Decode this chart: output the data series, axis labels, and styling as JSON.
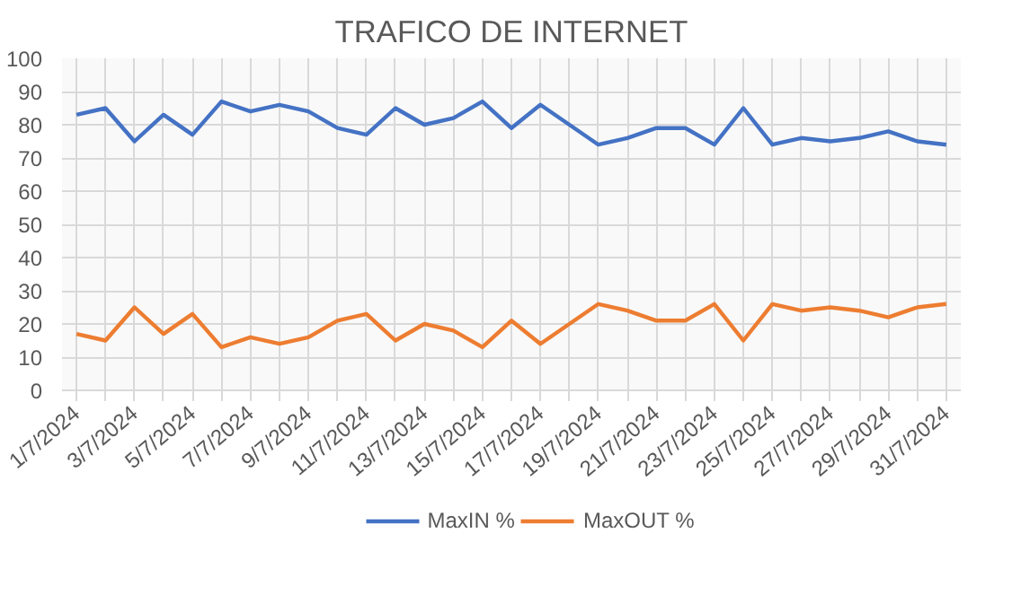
{
  "chart_data": {
    "type": "line",
    "title": "TRAFICO DE INTERNET",
    "categories": [
      "1/7/2024",
      null,
      "3/7/2024",
      null,
      "5/7/2024",
      null,
      "7/7/2024",
      null,
      "9/7/2024",
      null,
      "11/7/2024",
      null,
      "13/7/2024",
      null,
      "15/7/2024",
      null,
      "17/7/2024",
      null,
      "19/7/2024",
      null,
      "21/7/2024",
      null,
      "23/7/2024",
      null,
      "25/7/2024",
      null,
      "27/7/2024",
      null,
      "29/7/2024",
      null,
      "31/7/2024"
    ],
    "series": [
      {
        "name": "MaxIN %",
        "color": "#4472c4",
        "values": [
          83,
          85,
          75,
          83,
          77,
          87,
          84,
          86,
          84,
          79,
          77,
          85,
          80,
          82,
          87,
          79,
          86,
          80,
          74,
          76,
          79,
          79,
          74,
          85,
          74,
          76,
          75,
          76,
          78,
          75,
          74
        ]
      },
      {
        "name": "MaxOUT %",
        "color": "#ed7d31",
        "values": [
          17,
          15,
          25,
          17,
          23,
          13,
          16,
          14,
          16,
          21,
          23,
          15,
          20,
          18,
          13,
          21,
          14,
          20,
          26,
          24,
          21,
          21,
          26,
          15,
          26,
          24,
          25,
          24,
          22,
          25,
          26
        ]
      }
    ],
    "ylim": [
      0,
      100
    ],
    "yticks": [
      0,
      10,
      20,
      30,
      40,
      50,
      60,
      70,
      80,
      90,
      100
    ],
    "grid": true,
    "legend": "bottom",
    "marker": "none",
    "line_style": "solid"
  }
}
